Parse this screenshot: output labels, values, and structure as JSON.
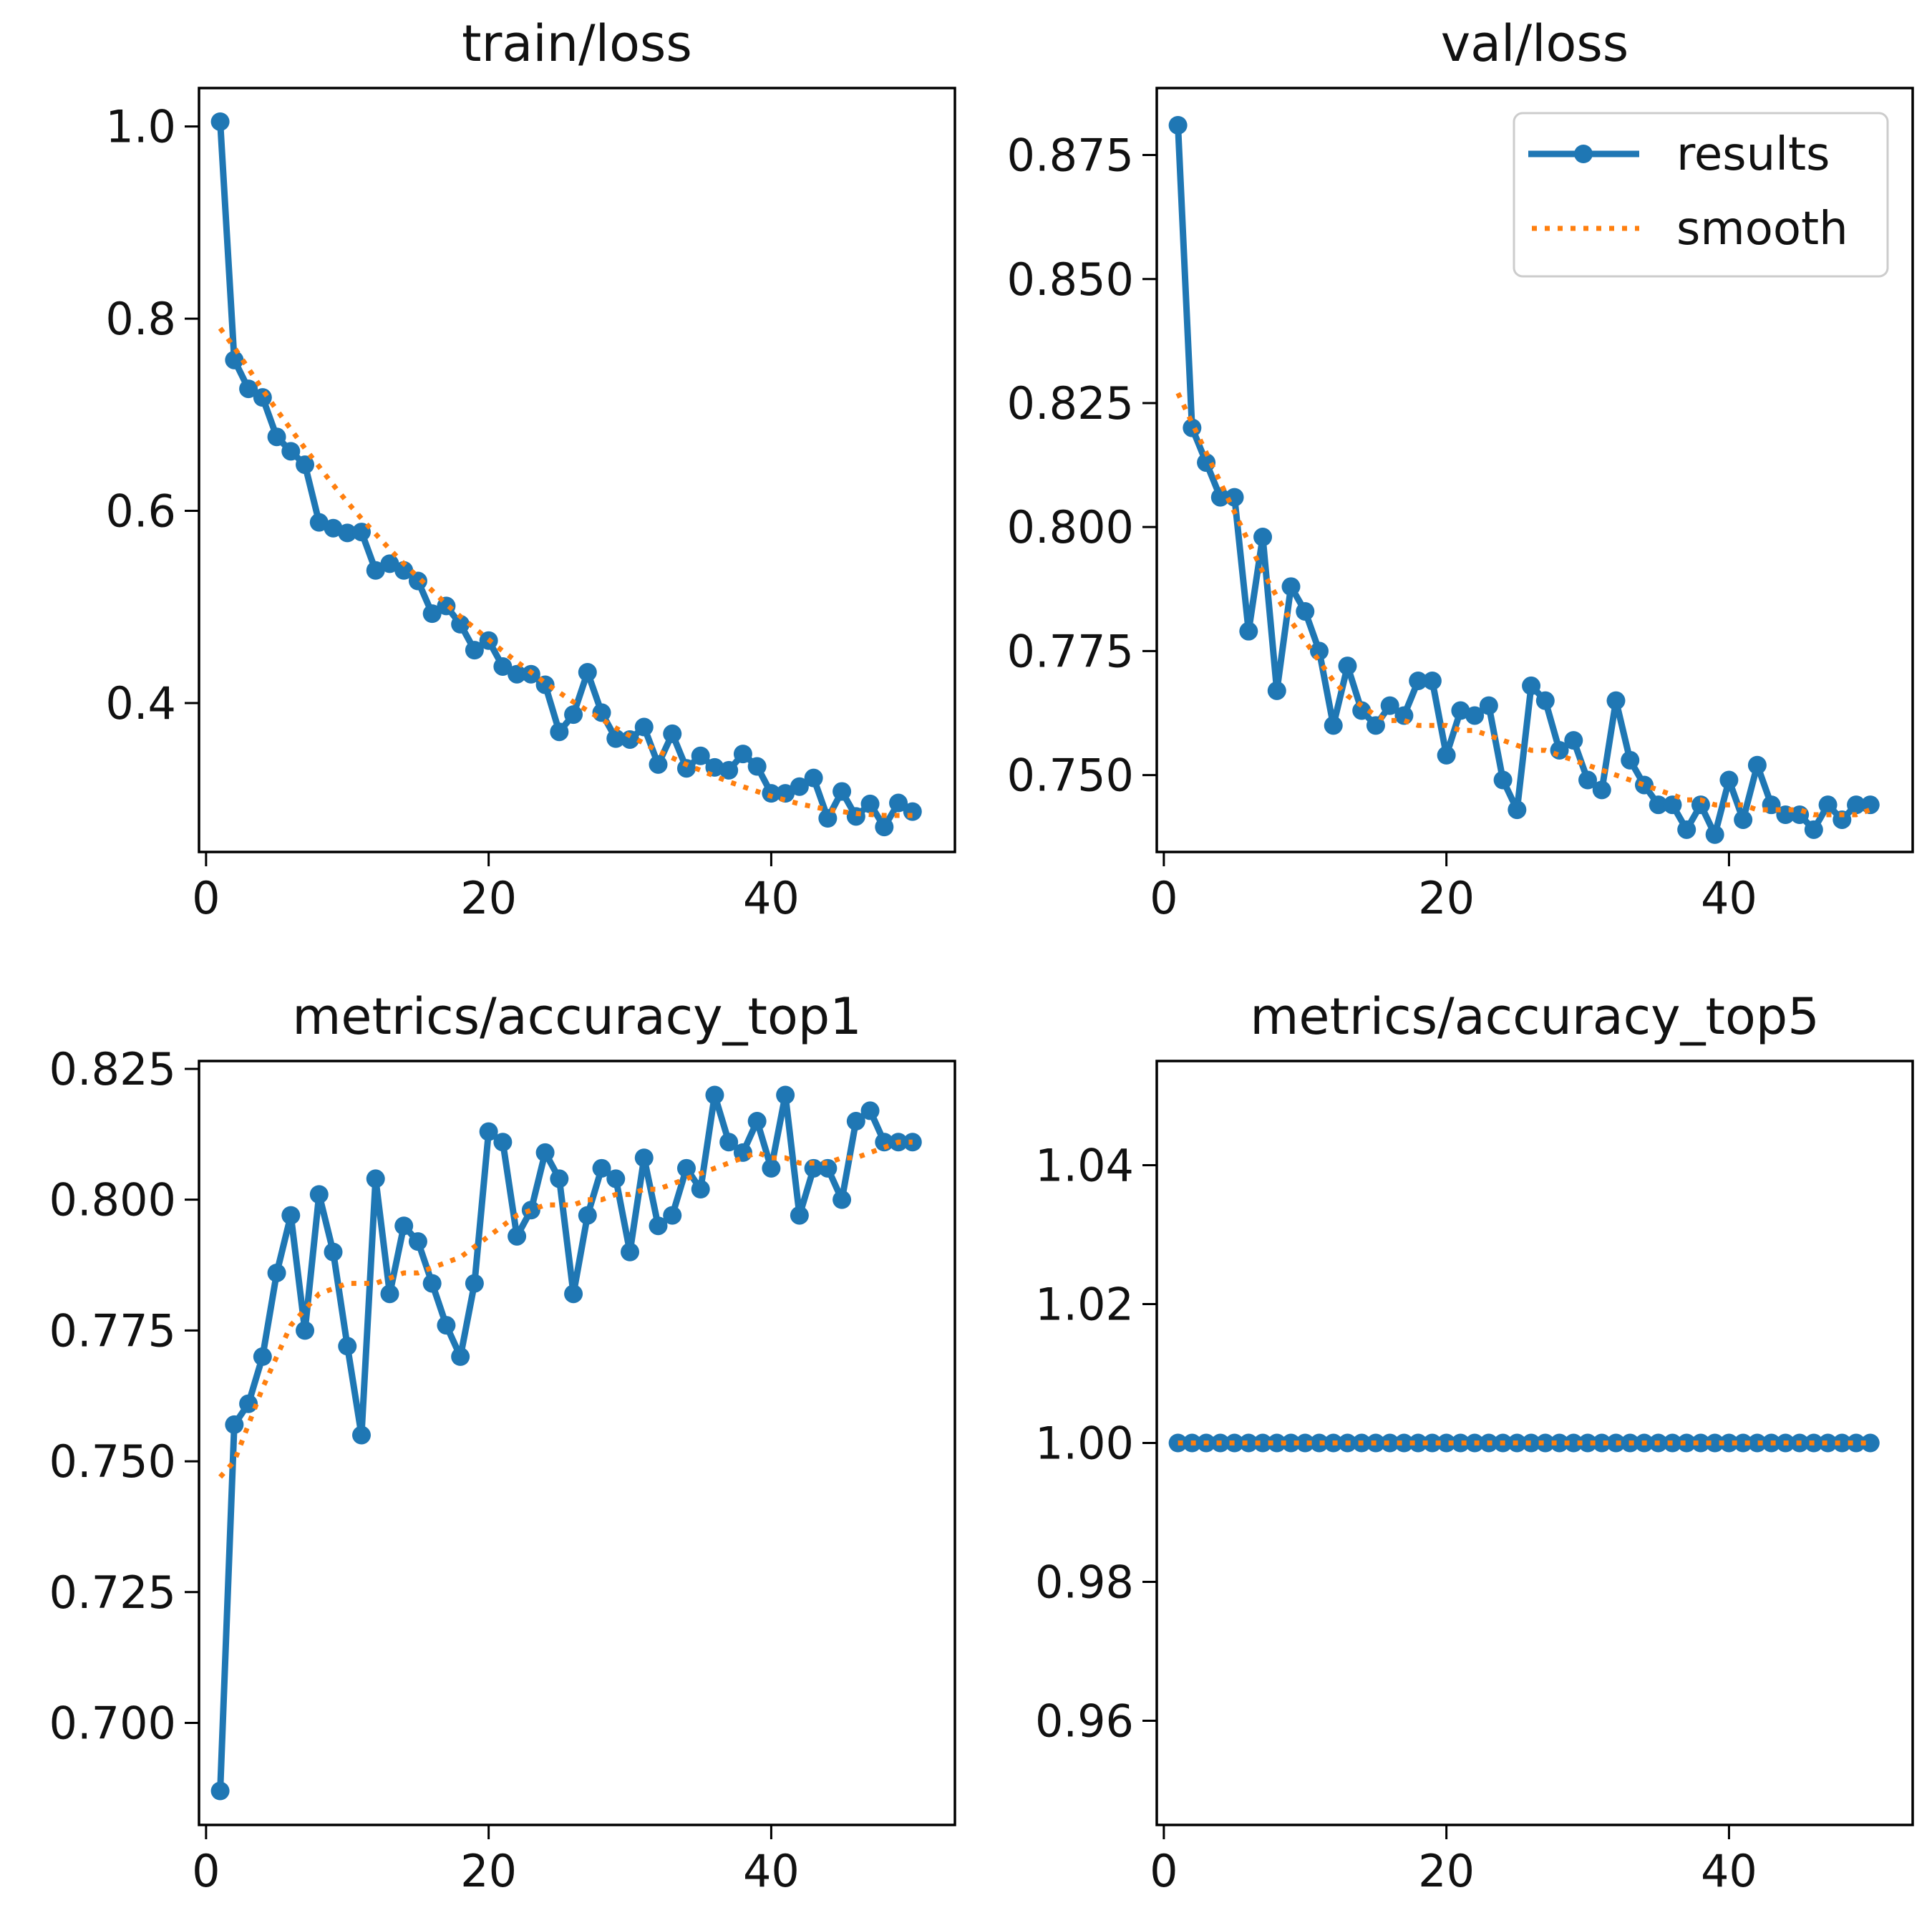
{
  "figure": {
    "layout": "2x2 grid"
  },
  "colors": {
    "results": "#1f77b4",
    "smooth": "#ff7f0e",
    "axes": "#000000",
    "legend_border": "#cccccc"
  },
  "legend": {
    "placement": "top-right of val/loss",
    "entries": [
      "results",
      "smooth"
    ]
  },
  "chart_data": [
    {
      "type": "line",
      "title": "train/loss",
      "xlabel": "",
      "ylabel": "",
      "xlim": [
        -0.5,
        53
      ],
      "ylim": [
        0.245,
        1.04
      ],
      "xticks": [
        0,
        20,
        40
      ],
      "yticks": [
        0.4,
        0.6,
        0.8,
        1.0
      ],
      "ytick_labels": [
        "0.4",
        "0.6",
        "0.8",
        "1.0"
      ],
      "x": [
        1,
        2,
        3,
        4,
        5,
        6,
        7,
        8,
        9,
        10,
        11,
        12,
        13,
        14,
        15,
        16,
        17,
        18,
        19,
        20,
        21,
        22,
        23,
        24,
        25,
        26,
        27,
        28,
        29,
        30,
        31,
        32,
        33,
        34,
        35,
        36,
        37,
        38,
        39,
        40,
        41,
        42,
        43,
        44,
        45,
        46,
        47,
        48,
        49,
        50
      ],
      "series": [
        {
          "name": "results",
          "values": [
            1.005,
            0.757,
            0.727,
            0.718,
            0.677,
            0.662,
            0.648,
            0.588,
            0.582,
            0.577,
            0.578,
            0.538,
            0.545,
            0.538,
            0.527,
            0.493,
            0.501,
            0.482,
            0.455,
            0.465,
            0.438,
            0.43,
            0.43,
            0.419,
            0.37,
            0.388,
            0.432,
            0.39,
            0.363,
            0.362,
            0.375,
            0.336,
            0.368,
            0.332,
            0.345,
            0.333,
            0.33,
            0.347,
            0.334,
            0.306,
            0.306,
            0.313,
            0.322,
            0.28,
            0.308,
            0.282,
            0.295,
            0.271,
            0.296,
            0.287
          ]
        },
        {
          "name": "smooth",
          "values": [
            0.79,
            0.77,
            0.748,
            0.726,
            0.705,
            0.685,
            0.665,
            0.646,
            0.627,
            0.609,
            0.592,
            0.576,
            0.56,
            0.545,
            0.531,
            0.517,
            0.503,
            0.49,
            0.478,
            0.466,
            0.454,
            0.443,
            0.432,
            0.421,
            0.411,
            0.401,
            0.392,
            0.383,
            0.374,
            0.366,
            0.358,
            0.35,
            0.343,
            0.336,
            0.33,
            0.324,
            0.318,
            0.313,
            0.308,
            0.303,
            0.299,
            0.295,
            0.292,
            0.289,
            0.287,
            0.285,
            0.284,
            0.283,
            0.283,
            0.283
          ]
        }
      ]
    },
    {
      "type": "line",
      "title": "val/loss",
      "xlabel": "",
      "ylabel": "",
      "xlim": [
        -0.5,
        53
      ],
      "ylim": [
        0.7345,
        0.8885
      ],
      "xticks": [
        0,
        20,
        40
      ],
      "yticks": [
        0.75,
        0.775,
        0.8,
        0.825,
        0.85,
        0.875
      ],
      "ytick_labels": [
        "0.750",
        "0.775",
        "0.800",
        "0.825",
        "0.850",
        "0.875"
      ],
      "x": [
        1,
        2,
        3,
        4,
        5,
        6,
        7,
        8,
        9,
        10,
        11,
        12,
        13,
        14,
        15,
        16,
        17,
        18,
        19,
        20,
        21,
        22,
        23,
        24,
        25,
        26,
        27,
        28,
        29,
        30,
        31,
        32,
        33,
        34,
        35,
        36,
        37,
        38,
        39,
        40,
        41,
        42,
        43,
        44,
        45,
        46,
        47,
        48,
        49,
        50
      ],
      "series": [
        {
          "name": "results",
          "values": [
            0.881,
            0.82,
            0.813,
            0.806,
            0.806,
            0.779,
            0.798,
            0.767,
            0.788,
            0.783,
            0.775,
            0.76,
            0.772,
            0.763,
            0.76,
            0.764,
            0.762,
            0.769,
            0.769,
            0.754,
            0.763,
            0.762,
            0.764,
            0.749,
            0.743,
            0.768,
            0.765,
            0.755,
            0.757,
            0.749,
            0.747,
            0.765,
            0.753,
            0.748,
            0.744,
            0.744,
            0.739,
            0.744,
            0.738,
            0.749,
            0.741,
            0.752,
            0.744,
            0.742,
            0.742,
            0.739,
            0.744,
            0.741,
            0.744,
            0.744
          ]
        },
        {
          "name": "smooth",
          "values": [
            0.827,
            0.821,
            0.815,
            0.809,
            0.803,
            0.797,
            0.791,
            0.786,
            0.781,
            0.777,
            0.773,
            0.769,
            0.766,
            0.764,
            0.762,
            0.761,
            0.761,
            0.76,
            0.76,
            0.76,
            0.759,
            0.759,
            0.758,
            0.757,
            0.756,
            0.755,
            0.755,
            0.754,
            0.753,
            0.752,
            0.751,
            0.75,
            0.749,
            0.748,
            0.747,
            0.746,
            0.745,
            0.745,
            0.744,
            0.744,
            0.744,
            0.743,
            0.743,
            0.743,
            0.743,
            0.742,
            0.742,
            0.742,
            0.742,
            0.743
          ]
        }
      ]
    },
    {
      "type": "line",
      "title": "metrics/accuracy_top1",
      "xlabel": "",
      "ylabel": "",
      "xlim": [
        -0.5,
        53
      ],
      "ylim": [
        0.6805,
        0.8265
      ],
      "xticks": [
        0,
        20,
        40
      ],
      "yticks": [
        0.7,
        0.725,
        0.75,
        0.775,
        0.8,
        0.825
      ],
      "ytick_labels": [
        "0.700",
        "0.725",
        "0.750",
        "0.775",
        "0.800",
        "0.825"
      ],
      "x": [
        1,
        2,
        3,
        4,
        5,
        6,
        7,
        8,
        9,
        10,
        11,
        12,
        13,
        14,
        15,
        16,
        17,
        18,
        19,
        20,
        21,
        22,
        23,
        24,
        25,
        26,
        27,
        28,
        29,
        30,
        31,
        32,
        33,
        34,
        35,
        36,
        37,
        38,
        39,
        40,
        41,
        42,
        43,
        44,
        45,
        46,
        47,
        48,
        49,
        50
      ],
      "series": [
        {
          "name": "results",
          "values": [
            0.687,
            0.757,
            0.761,
            0.77,
            0.786,
            0.797,
            0.775,
            0.801,
            0.79,
            0.772,
            0.755,
            0.804,
            0.782,
            0.795,
            0.792,
            0.784,
            0.776,
            0.77,
            0.784,
            0.813,
            0.811,
            0.793,
            0.798,
            0.809,
            0.804,
            0.782,
            0.797,
            0.806,
            0.804,
            0.79,
            0.808,
            0.795,
            0.797,
            0.806,
            0.802,
            0.82,
            0.811,
            0.809,
            0.815,
            0.806,
            0.82,
            0.797,
            0.806,
            0.806,
            0.8,
            0.815,
            0.817,
            0.811,
            0.811,
            0.811
          ]
        },
        {
          "name": "smooth",
          "values": [
            0.747,
            0.75,
            0.757,
            0.764,
            0.77,
            0.776,
            0.779,
            0.782,
            0.783,
            0.784,
            0.784,
            0.784,
            0.785,
            0.786,
            0.786,
            0.787,
            0.788,
            0.789,
            0.791,
            0.793,
            0.795,
            0.797,
            0.798,
            0.799,
            0.799,
            0.799,
            0.8,
            0.8,
            0.801,
            0.801,
            0.802,
            0.802,
            0.803,
            0.804,
            0.805,
            0.806,
            0.807,
            0.808,
            0.809,
            0.808,
            0.808,
            0.807,
            0.807,
            0.807,
            0.808,
            0.808,
            0.809,
            0.81,
            0.811,
            0.811
          ]
        }
      ]
    },
    {
      "type": "line",
      "title": "metrics/accuracy_top5",
      "xlabel": "",
      "ylabel": "",
      "xlim": [
        -0.5,
        53
      ],
      "ylim": [
        0.945,
        1.055
      ],
      "xticks": [
        0,
        20,
        40
      ],
      "yticks": [
        0.96,
        0.98,
        1.0,
        1.02,
        1.04
      ],
      "ytick_labels": [
        "0.96",
        "0.98",
        "1.00",
        "1.02",
        "1.04"
      ],
      "x": [
        1,
        2,
        3,
        4,
        5,
        6,
        7,
        8,
        9,
        10,
        11,
        12,
        13,
        14,
        15,
        16,
        17,
        18,
        19,
        20,
        21,
        22,
        23,
        24,
        25,
        26,
        27,
        28,
        29,
        30,
        31,
        32,
        33,
        34,
        35,
        36,
        37,
        38,
        39,
        40,
        41,
        42,
        43,
        44,
        45,
        46,
        47,
        48,
        49,
        50
      ],
      "series": [
        {
          "name": "results",
          "values": [
            1,
            1,
            1,
            1,
            1,
            1,
            1,
            1,
            1,
            1,
            1,
            1,
            1,
            1,
            1,
            1,
            1,
            1,
            1,
            1,
            1,
            1,
            1,
            1,
            1,
            1,
            1,
            1,
            1,
            1,
            1,
            1,
            1,
            1,
            1,
            1,
            1,
            1,
            1,
            1,
            1,
            1,
            1,
            1,
            1,
            1,
            1,
            1,
            1,
            1
          ]
        },
        {
          "name": "smooth",
          "values": [
            1,
            1,
            1,
            1,
            1,
            1,
            1,
            1,
            1,
            1,
            1,
            1,
            1,
            1,
            1,
            1,
            1,
            1,
            1,
            1,
            1,
            1,
            1,
            1,
            1,
            1,
            1,
            1,
            1,
            1,
            1,
            1,
            1,
            1,
            1,
            1,
            1,
            1,
            1,
            1,
            1,
            1,
            1,
            1,
            1,
            1,
            1,
            1,
            1,
            1
          ]
        }
      ]
    }
  ]
}
